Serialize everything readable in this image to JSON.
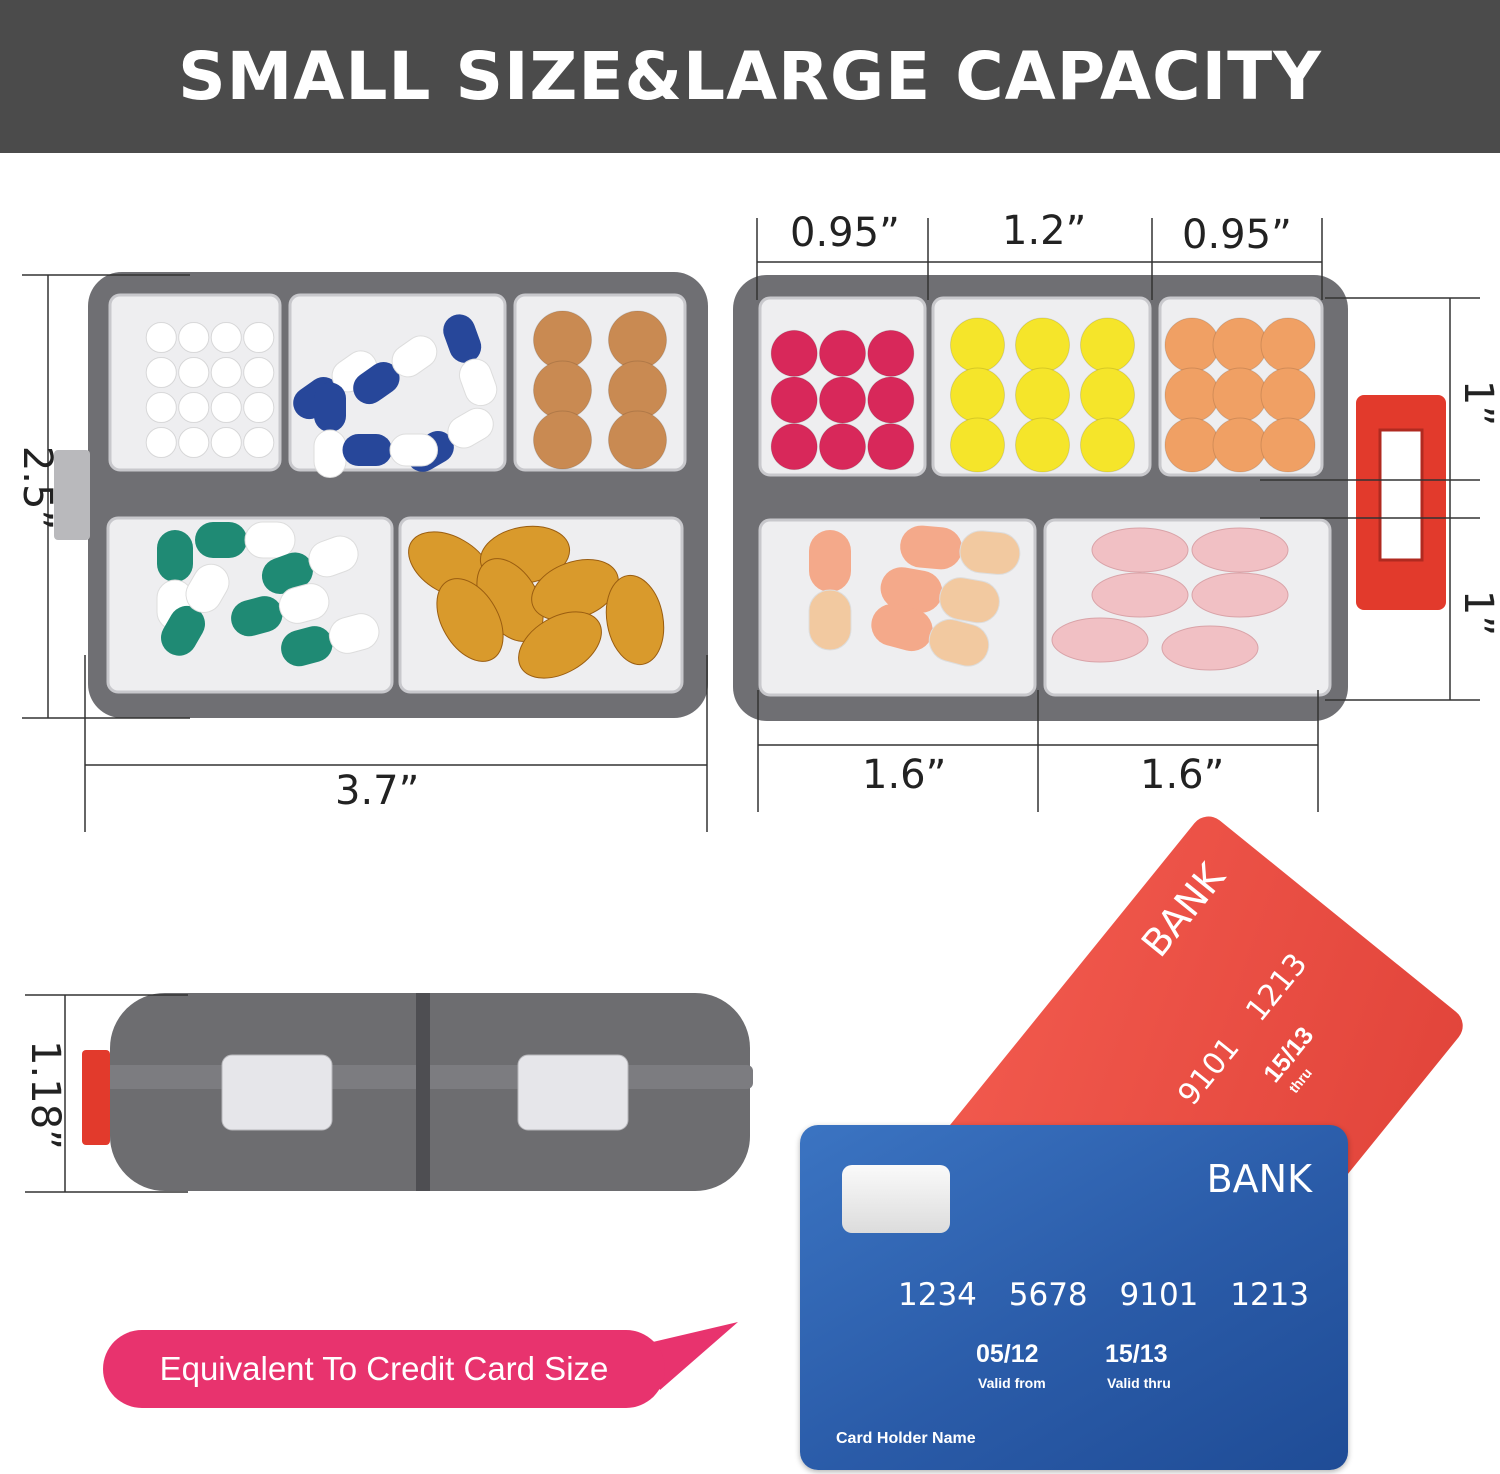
{
  "header": {
    "title": "SMALL SIZE&LARGE CAPACITY"
  },
  "dimensions": {
    "height": "2.5”",
    "width": "3.7”",
    "top_left": "0.95”",
    "top_middle": "1.2”",
    "top_right": "0.95”",
    "right_top": "1”",
    "right_bottom": "1”",
    "bottom_left": "1.6”",
    "bottom_right": "1.6”",
    "thickness": "1.18”"
  },
  "callout": {
    "text": "Equivalent To Credit Card Size",
    "color": "#e8336e"
  },
  "red_card": {
    "bank": "BANK",
    "number": "9101 1213",
    "date": "15/13",
    "valid": "thru",
    "color": "#ef5247"
  },
  "blue_card": {
    "bank": "BANK",
    "number": "1234 5678 9101 1213",
    "valid_from": "05/12",
    "valid_from_label": "Valid from",
    "valid_thru": "15/13",
    "valid_thru_label": "Valid thru",
    "holder": "Card Holder Name",
    "color": "#2a5ba8"
  },
  "colors": {
    "case": "#6f6f73",
    "latch": "#e23a2c",
    "white_pill": "#ffffff",
    "blue_capsule": "#27479a",
    "tan": "#c98a52",
    "teal_capsule": "#1f8a74",
    "amber": "#d99a2c",
    "crimson": "#d8285a",
    "yellow": "#f5e52a",
    "orange": "#f0a064",
    "peach": "#f4a98a",
    "pink": "#f1c0c4"
  }
}
